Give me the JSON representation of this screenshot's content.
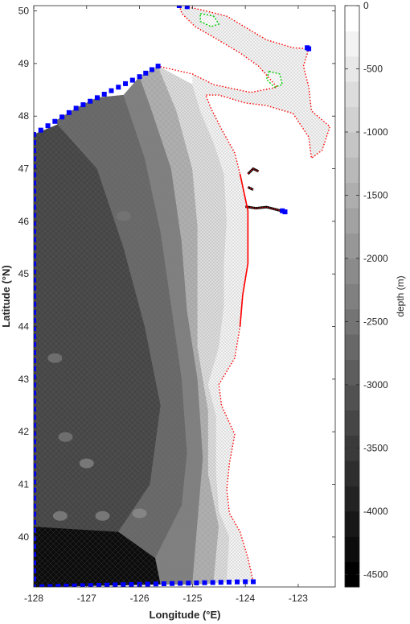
{
  "chart_data": {
    "type": "heatmap",
    "title": "",
    "xlabel": "Longitude (°E)",
    "ylabel": "Latitude (°N)",
    "xlim": [
      -128,
      -122.3
    ],
    "ylim": [
      39.05,
      50.1
    ],
    "x_ticks": [
      -128,
      -127,
      -126,
      -125,
      -124,
      -123
    ],
    "y_ticks": [
      40,
      41,
      42,
      43,
      44,
      45,
      46,
      47,
      48,
      49,
      50
    ],
    "colorbar": {
      "label": "depth (m)",
      "range": [
        -4600,
        0
      ],
      "ticks": [
        0,
        -500,
        -1000,
        -1500,
        -2000,
        -2500,
        -3000,
        -3500,
        -4000,
        -4500
      ],
      "levels": 23,
      "colormap": "gray"
    },
    "grid": false,
    "colors": {
      "ocean_boundary": "#0000ff",
      "land_boundary": "#ff0000",
      "island_boundary": "#00cc00",
      "mesh": "#808080"
    },
    "ocean_open_boundary": [
      [
        -125.65,
        48.95
      ],
      [
        -126.0,
        48.75
      ],
      [
        -126.4,
        48.55
      ],
      [
        -126.8,
        48.35
      ],
      [
        -127.2,
        48.15
      ],
      [
        -127.6,
        47.9
      ],
      [
        -128.0,
        47.65
      ],
      [
        -128.0,
        39.05
      ],
      [
        -126.0,
        39.1
      ],
      [
        -124.0,
        39.15
      ],
      [
        -123.85,
        39.15
      ]
    ],
    "river_open_boundaries": [
      [
        [
          -125.1,
          50.08
        ],
        [
          -125.25,
          50.1
        ]
      ],
      [
        [
          -122.8,
          49.28
        ],
        [
          -122.83,
          49.3
        ]
      ],
      [
        [
          -123.3,
          46.2
        ],
        [
          -123.25,
          46.18
        ]
      ]
    ],
    "coastline": [
      [
        -123.85,
        39.15
      ],
      [
        -123.95,
        39.6
      ],
      [
        -124.1,
        40.1
      ],
      [
        -124.3,
        40.45
      ],
      [
        -124.35,
        40.9
      ],
      [
        -124.3,
        41.4
      ],
      [
        -124.2,
        41.95
      ],
      [
        -124.45,
        42.5
      ],
      [
        -124.5,
        42.9
      ],
      [
        -124.2,
        43.4
      ],
      [
        -124.1,
        44.0
      ],
      [
        -124.05,
        44.6
      ],
      [
        -123.95,
        45.2
      ],
      [
        -123.95,
        45.7
      ],
      [
        -123.95,
        46.2
      ],
      [
        -124.1,
        46.9
      ],
      [
        -124.2,
        47.3
      ],
      [
        -124.45,
        47.75
      ],
      [
        -124.65,
        48.15
      ],
      [
        -124.75,
        48.4
      ],
      [
        -124.5,
        48.4
      ],
      [
        -124.0,
        48.25
      ],
      [
        -123.6,
        48.2
      ],
      [
        -123.1,
        48.05
      ],
      [
        -122.8,
        47.6
      ],
      [
        -122.75,
        47.2
      ],
      [
        -122.55,
        47.35
      ],
      [
        -122.4,
        47.8
      ],
      [
        -122.75,
        48.1
      ],
      [
        -122.8,
        48.55
      ],
      [
        -122.9,
        48.95
      ],
      [
        -122.8,
        49.28
      ],
      [
        -123.1,
        49.3
      ],
      [
        -123.6,
        49.45
      ],
      [
        -124.1,
        49.75
      ],
      [
        -124.35,
        49.9
      ],
      [
        -124.75,
        50.0
      ],
      [
        -125.1,
        50.08
      ]
    ],
    "vancouver_island_coast": [
      [
        -125.25,
        50.1
      ],
      [
        -125.2,
        49.95
      ],
      [
        -124.95,
        49.7
      ],
      [
        -124.6,
        49.5
      ],
      [
        -124.1,
        49.2
      ],
      [
        -123.75,
        48.95
      ],
      [
        -123.4,
        48.55
      ],
      [
        -123.9,
        48.45
      ],
      [
        -124.6,
        48.6
      ],
      [
        -125.0,
        48.8
      ],
      [
        -125.65,
        48.95
      ]
    ],
    "islands": [
      [
        [
          -124.85,
          49.95
        ],
        [
          -124.6,
          49.9
        ],
        [
          -124.5,
          49.75
        ],
        [
          -124.65,
          49.7
        ],
        [
          -124.85,
          49.8
        ]
      ],
      [
        [
          -123.55,
          48.85
        ],
        [
          -123.35,
          48.8
        ],
        [
          -123.3,
          48.6
        ],
        [
          -123.45,
          48.55
        ],
        [
          -123.6,
          48.7
        ]
      ]
    ],
    "bathymetry_regions": [
      {
        "depth": -4400,
        "polygon": [
          [
            -128.0,
            39.05
          ],
          [
            -125.6,
            39.1
          ],
          [
            -125.7,
            39.6
          ],
          [
            -126.4,
            40.1
          ],
          [
            -128.0,
            40.2
          ]
        ]
      },
      {
        "depth": -3300,
        "polygon": [
          [
            -128.0,
            40.2
          ],
          [
            -126.4,
            40.1
          ],
          [
            -125.8,
            41.0
          ],
          [
            -125.6,
            42.5
          ],
          [
            -125.9,
            44.0
          ],
          [
            -126.3,
            45.5
          ],
          [
            -126.8,
            47.0
          ],
          [
            -127.4,
            47.9
          ],
          [
            -128.0,
            47.65
          ]
        ]
      },
      {
        "depth": -2800,
        "polygon": [
          [
            -127.6,
            47.9
          ],
          [
            -126.8,
            47.0
          ],
          [
            -126.3,
            45.5
          ],
          [
            -125.9,
            44.0
          ],
          [
            -125.6,
            42.5
          ],
          [
            -125.8,
            41.0
          ],
          [
            -126.4,
            40.1
          ],
          [
            -125.7,
            39.6
          ],
          [
            -125.2,
            40.6
          ],
          [
            -125.1,
            41.6
          ],
          [
            -125.2,
            43.0
          ],
          [
            -125.4,
            44.4
          ],
          [
            -125.6,
            45.8
          ],
          [
            -125.9,
            47.2
          ],
          [
            -126.3,
            48.4
          ],
          [
            -126.8,
            48.35
          ],
          [
            -127.2,
            48.15
          ]
        ]
      },
      {
        "depth": -2300,
        "polygon": [
          [
            -126.3,
            48.4
          ],
          [
            -125.9,
            47.2
          ],
          [
            -125.6,
            45.8
          ],
          [
            -125.4,
            44.4
          ],
          [
            -125.2,
            43.0
          ],
          [
            -125.1,
            41.6
          ],
          [
            -125.2,
            40.6
          ],
          [
            -125.7,
            39.6
          ],
          [
            -125.6,
            39.1
          ],
          [
            -125.0,
            39.1
          ],
          [
            -124.9,
            40.3
          ],
          [
            -124.8,
            41.5
          ],
          [
            -124.9,
            43.0
          ],
          [
            -125.1,
            44.3
          ],
          [
            -125.2,
            45.6
          ],
          [
            -125.4,
            47.0
          ],
          [
            -125.8,
            48.2
          ],
          [
            -126.0,
            48.75
          ]
        ]
      },
      {
        "depth": -1500,
        "polygon": [
          [
            -126.0,
            48.75
          ],
          [
            -125.8,
            48.2
          ],
          [
            -125.4,
            47.0
          ],
          [
            -125.2,
            45.6
          ],
          [
            -125.1,
            44.3
          ],
          [
            -124.9,
            43.0
          ],
          [
            -124.8,
            41.5
          ],
          [
            -124.9,
            40.3
          ],
          [
            -125.0,
            39.1
          ],
          [
            -124.6,
            39.12
          ],
          [
            -124.5,
            40.2
          ],
          [
            -124.7,
            41.2
          ],
          [
            -124.7,
            42.4
          ],
          [
            -124.9,
            43.6
          ],
          [
            -124.9,
            44.8
          ],
          [
            -124.9,
            45.9
          ],
          [
            -125.0,
            47.0
          ],
          [
            -125.3,
            48.1
          ],
          [
            -125.65,
            48.95
          ]
        ]
      },
      {
        "depth": -700,
        "polygon": [
          [
            -125.65,
            48.95
          ],
          [
            -125.3,
            48.1
          ],
          [
            -125.0,
            47.0
          ],
          [
            -124.9,
            45.9
          ],
          [
            -124.9,
            44.8
          ],
          [
            -124.9,
            43.6
          ],
          [
            -124.7,
            42.4
          ],
          [
            -124.7,
            41.2
          ],
          [
            -124.5,
            40.2
          ],
          [
            -124.6,
            39.12
          ],
          [
            -124.35,
            39.14
          ],
          [
            -124.3,
            40.0
          ],
          [
            -124.5,
            40.5
          ],
          [
            -124.55,
            41.2
          ],
          [
            -124.55,
            42.3
          ],
          [
            -124.7,
            42.9
          ],
          [
            -124.5,
            43.6
          ],
          [
            -124.4,
            44.4
          ],
          [
            -124.4,
            45.2
          ],
          [
            -124.35,
            46.0
          ],
          [
            -124.4,
            46.9
          ],
          [
            -124.6,
            47.5
          ],
          [
            -124.85,
            48.1
          ],
          [
            -125.0,
            48.6
          ]
        ]
      },
      {
        "depth": -200,
        "polygon": [
          [
            -125.0,
            48.6
          ],
          [
            -124.85,
            48.1
          ],
          [
            -124.6,
            47.5
          ],
          [
            -124.4,
            46.9
          ],
          [
            -124.35,
            46.0
          ],
          [
            -124.4,
            45.2
          ],
          [
            -124.4,
            44.4
          ],
          [
            -124.5,
            43.6
          ],
          [
            -124.7,
            42.9
          ],
          [
            -124.55,
            42.3
          ],
          [
            -124.55,
            41.2
          ],
          [
            -124.5,
            40.5
          ],
          [
            -124.3,
            40.0
          ],
          [
            -124.35,
            39.14
          ],
          [
            -123.85,
            39.15
          ],
          [
            -123.95,
            39.6
          ],
          [
            -124.1,
            40.1
          ],
          [
            -124.3,
            40.45
          ],
          [
            -124.35,
            40.9
          ],
          [
            -124.3,
            41.4
          ],
          [
            -124.2,
            41.95
          ],
          [
            -124.45,
            42.5
          ],
          [
            -124.5,
            42.9
          ],
          [
            -124.2,
            43.4
          ],
          [
            -124.1,
            44.0
          ],
          [
            -124.05,
            44.6
          ],
          [
            -123.95,
            45.2
          ],
          [
            -123.95,
            45.7
          ],
          [
            -123.95,
            46.2
          ],
          [
            -124.1,
            46.9
          ],
          [
            -124.2,
            47.3
          ],
          [
            -124.45,
            47.75
          ],
          [
            -124.65,
            48.15
          ],
          [
            -124.75,
            48.4
          ]
        ]
      },
      {
        "depth": -150,
        "polygon": [
          [
            -125.1,
            50.08
          ],
          [
            -124.75,
            50.0
          ],
          [
            -124.35,
            49.9
          ],
          [
            -124.1,
            49.75
          ],
          [
            -123.6,
            49.45
          ],
          [
            -123.1,
            49.3
          ],
          [
            -122.8,
            49.28
          ],
          [
            -122.9,
            48.95
          ],
          [
            -122.8,
            48.55
          ],
          [
            -122.75,
            48.1
          ],
          [
            -122.4,
            47.8
          ],
          [
            -122.55,
            47.35
          ],
          [
            -122.75,
            47.2
          ],
          [
            -122.8,
            47.6
          ],
          [
            -123.1,
            48.05
          ],
          [
            -123.6,
            48.2
          ],
          [
            -124.0,
            48.25
          ],
          [
            -124.5,
            48.4
          ],
          [
            -124.75,
            48.4
          ],
          [
            -125.0,
            48.6
          ],
          [
            -125.0,
            48.8
          ],
          [
            -124.6,
            48.6
          ],
          [
            -123.9,
            48.45
          ],
          [
            -123.4,
            48.55
          ],
          [
            -123.75,
            48.95
          ],
          [
            -124.1,
            49.2
          ],
          [
            -124.6,
            49.5
          ],
          [
            -124.95,
            49.7
          ],
          [
            -125.2,
            49.95
          ],
          [
            -125.25,
            50.1
          ]
        ]
      }
    ],
    "seamounts": [
      {
        "lon": -126.3,
        "lat": 46.1,
        "depth": -2600
      },
      {
        "lon": -127.6,
        "lat": 43.4,
        "depth": -2500
      },
      {
        "lon": -127.4,
        "lat": 41.9,
        "depth": -2500
      },
      {
        "lon": -127.0,
        "lat": 41.4,
        "depth": -2400
      },
      {
        "lon": -126.7,
        "lat": 40.4,
        "depth": -2200
      },
      {
        "lon": -127.5,
        "lat": 40.4,
        "depth": -2300
      },
      {
        "lon": -126.0,
        "lat": 40.45,
        "depth": -2000
      }
    ],
    "rivers": [
      {
        "depth": -20,
        "points": [
          [
            -124.0,
            46.28
          ],
          [
            -123.8,
            46.25
          ],
          [
            -123.6,
            46.27
          ],
          [
            -123.4,
            46.22
          ],
          [
            -123.25,
            46.18
          ]
        ]
      },
      {
        "depth": -20,
        "points": [
          [
            -123.95,
            46.9
          ],
          [
            -123.85,
            47.0
          ],
          [
            -123.75,
            46.95
          ]
        ]
      },
      {
        "depth": -20,
        "points": [
          [
            -123.95,
            46.65
          ],
          [
            -123.85,
            46.6
          ]
        ]
      }
    ]
  }
}
